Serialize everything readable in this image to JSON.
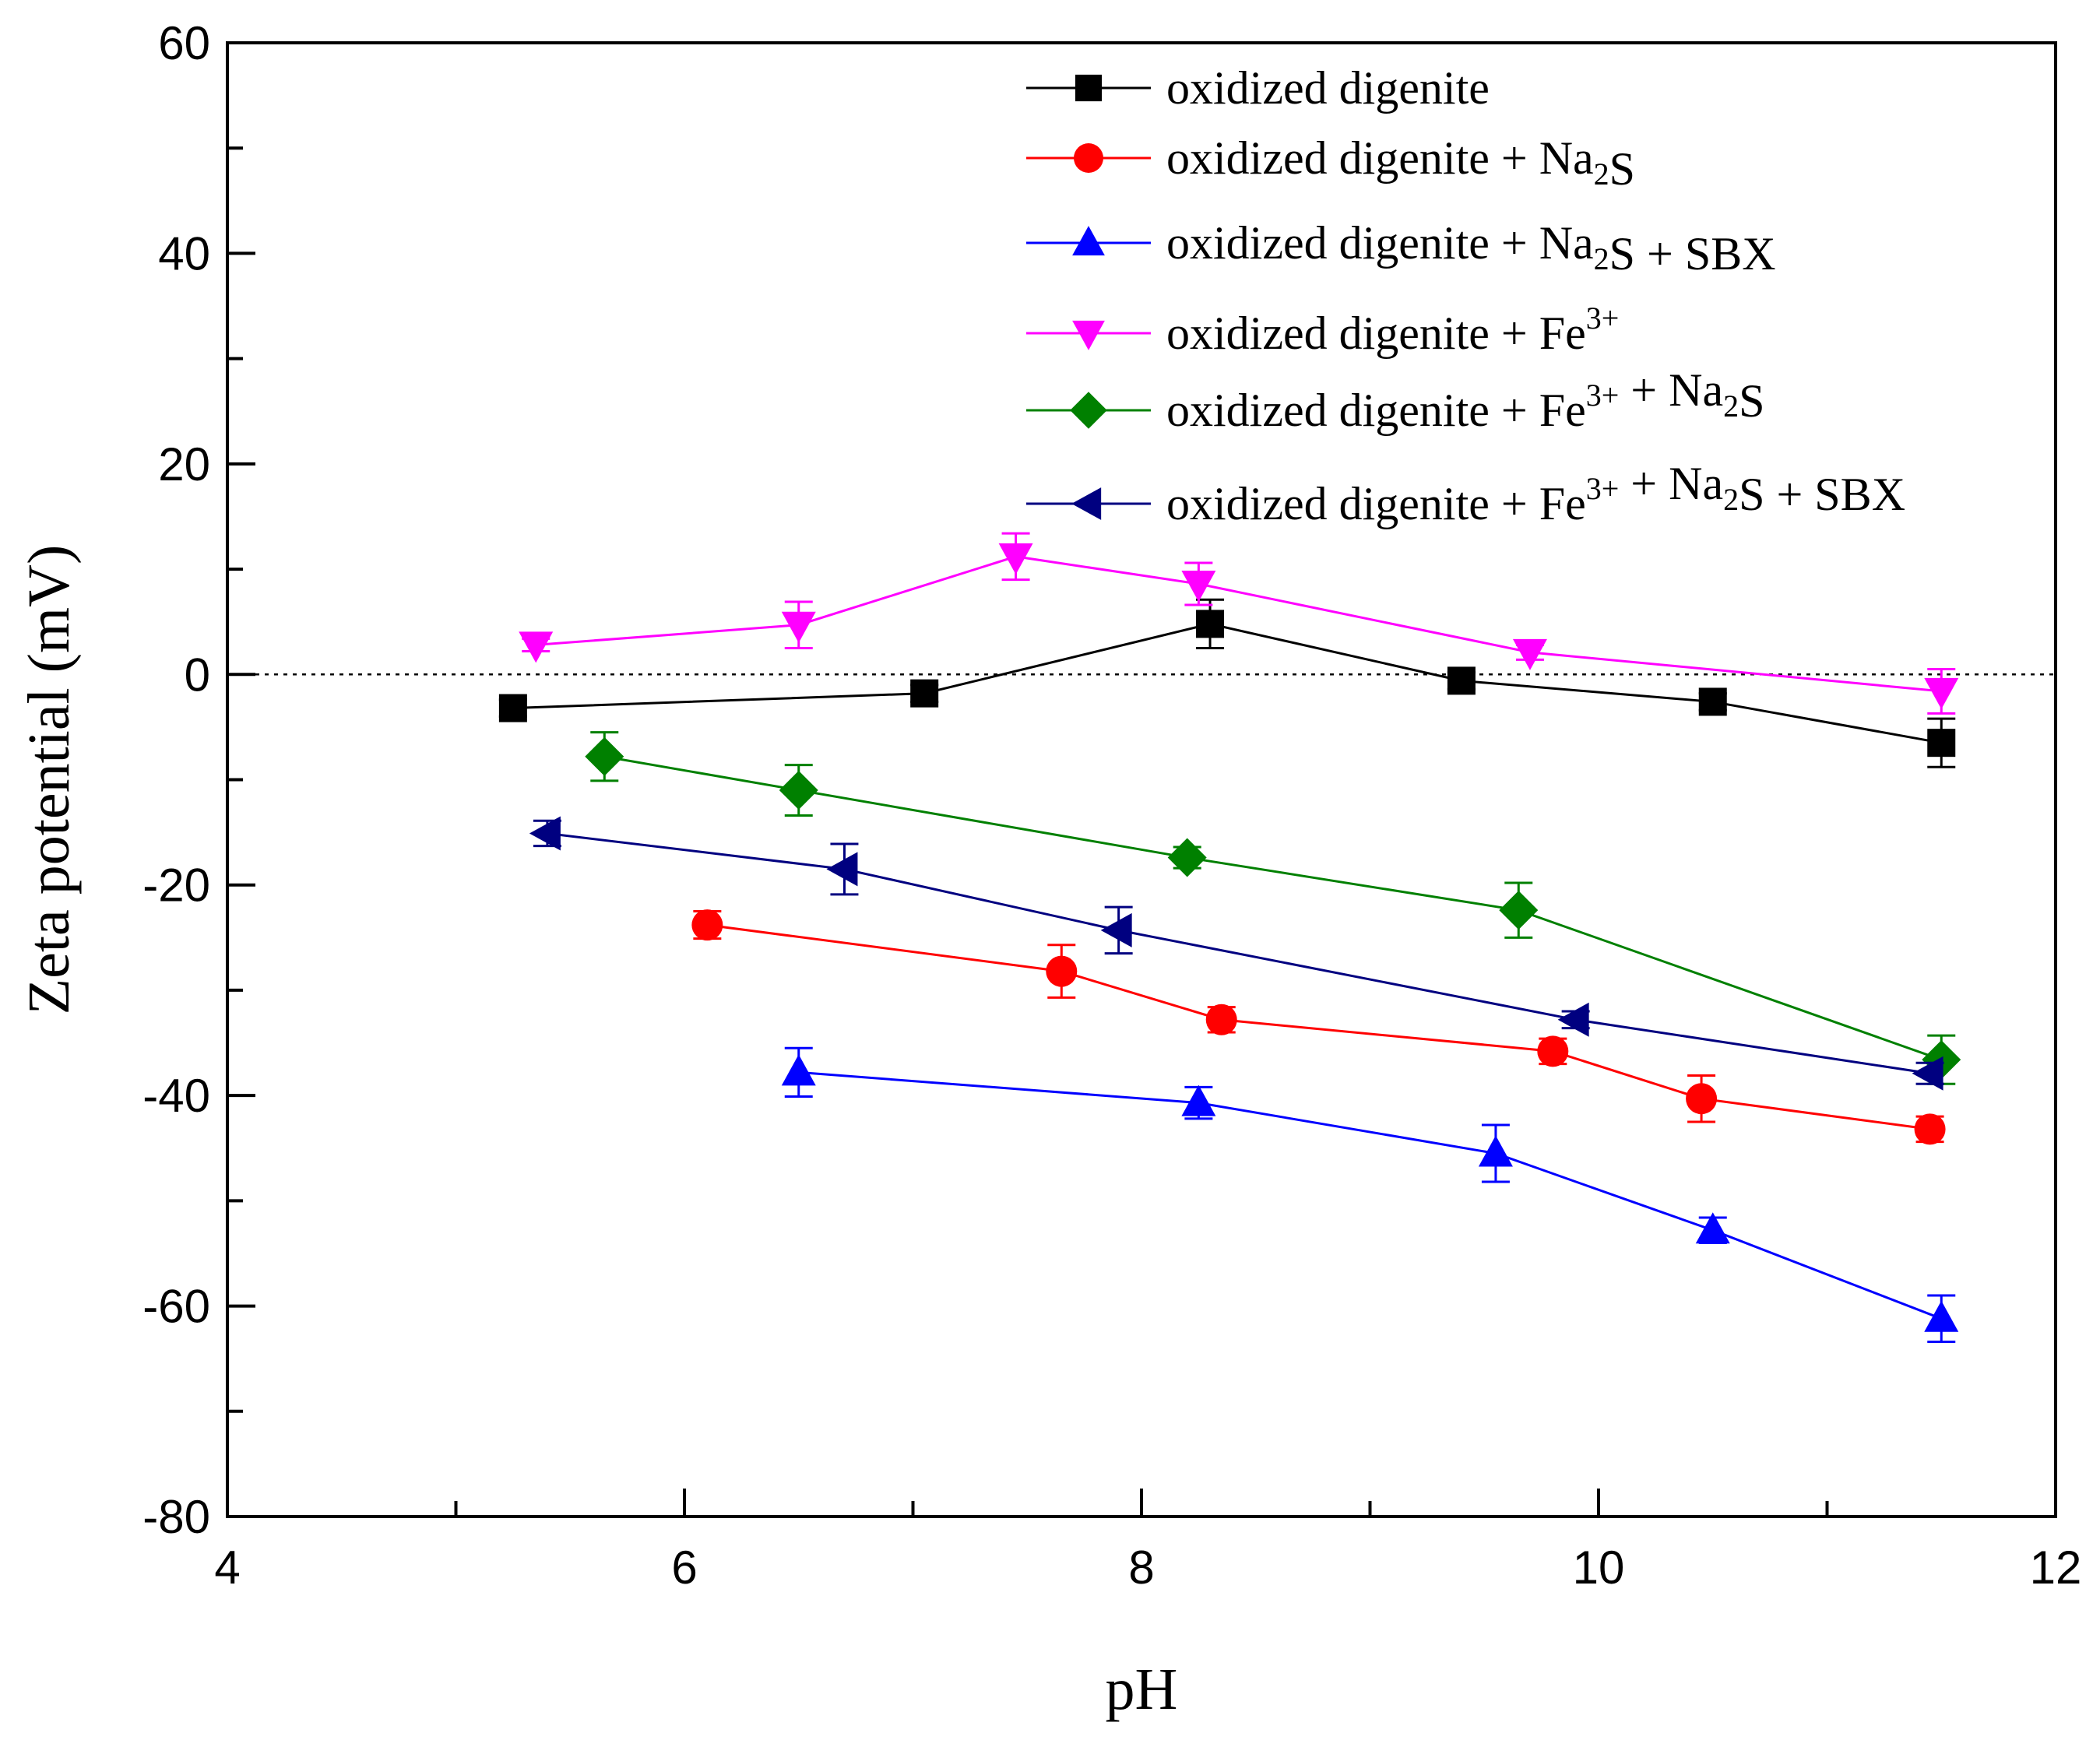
{
  "chart_data": {
    "type": "line",
    "xlabel": "pH",
    "ylabel": "Zeta potential (mV)",
    "xlim": [
      4,
      12
    ],
    "ylim": [
      -80,
      60
    ],
    "xticks": [
      4,
      6,
      8,
      10,
      12
    ],
    "yticks": [
      -80,
      -60,
      -40,
      -20,
      0,
      20,
      40,
      60
    ],
    "zero_line": true,
    "legend_position": "top-right",
    "series": [
      {
        "name": "oxidized digenite",
        "legend": [
          {
            "t": "oxidized digenite"
          }
        ],
        "color": "#000000",
        "marker": "square",
        "x": [
          5.25,
          7.05,
          8.3,
          9.4,
          10.5,
          11.5
        ],
        "y": [
          -3.2,
          -1.8,
          4.8,
          -0.6,
          -2.6,
          -6.5
        ],
        "err": [
          0.8,
          0.8,
          2.3,
          0.8,
          0.8,
          2.3
        ]
      },
      {
        "name": "oxidized digenite + Na2S",
        "legend": [
          {
            "t": "oxidized digenite + Na"
          },
          {
            "t": "2",
            "sub": true
          },
          {
            "t": "S"
          }
        ],
        "color": "#ff0000",
        "marker": "circle",
        "x": [
          6.1,
          7.65,
          8.35,
          9.8,
          10.45,
          11.45
        ],
        "y": [
          -23.8,
          -28.2,
          -32.8,
          -35.8,
          -40.3,
          -43.2
        ],
        "err": [
          1.3,
          2.5,
          1.2,
          1.2,
          2.2,
          1.2
        ]
      },
      {
        "name": "oxidized digenite + Na2S + SBX",
        "legend": [
          {
            "t": "oxidized digenite + Na"
          },
          {
            "t": "2",
            "sub": true
          },
          {
            "t": "S + SBX"
          }
        ],
        "color": "#0000ff",
        "marker": "triangle-up",
        "x": [
          6.5,
          8.25,
          9.55,
          10.5,
          11.5
        ],
        "y": [
          -37.8,
          -40.7,
          -45.5,
          -52.8,
          -61.2
        ],
        "err": [
          2.3,
          1.5,
          2.7,
          1.2,
          2.2
        ]
      },
      {
        "name": "oxidized digenite + Fe3+",
        "legend": [
          {
            "t": "oxidized digenite + Fe"
          },
          {
            "t": "3+",
            "sup": true
          }
        ],
        "color": "#ff00ff",
        "marker": "triangle-down",
        "x": [
          5.35,
          6.5,
          7.45,
          8.25,
          9.7,
          11.5
        ],
        "y": [
          2.8,
          4.7,
          11.2,
          8.6,
          2.1,
          -1.6
        ],
        "err": [
          0.6,
          2.2,
          2.2,
          2.0,
          0.7,
          2.1
        ]
      },
      {
        "name": "oxidized digenite + Fe3+ + Na2S",
        "legend": [
          {
            "t": "oxidized digenite + Fe"
          },
          {
            "t": "3+",
            "sup": true
          },
          {
            "t": " + Na"
          },
          {
            "t": "2",
            "sub": true
          },
          {
            "t": "S"
          }
        ],
        "color": "#008000",
        "marker": "diamond",
        "x": [
          5.65,
          6.5,
          8.2,
          9.65,
          11.5
        ],
        "y": [
          -7.8,
          -11.0,
          -17.4,
          -22.4,
          -36.6
        ],
        "err": [
          2.3,
          2.4,
          1.0,
          2.6,
          2.3
        ]
      },
      {
        "name": "oxidized digenite + Fe3+ + Na2S + SBX",
        "legend": [
          {
            "t": "oxidized digenite + Fe"
          },
          {
            "t": "3+",
            "sup": true
          },
          {
            "t": " + Na"
          },
          {
            "t": "2",
            "sub": true
          },
          {
            "t": "S + SBX"
          }
        ],
        "color": "#000080",
        "marker": "triangle-left",
        "x": [
          5.4,
          6.7,
          7.9,
          9.9,
          11.45
        ],
        "y": [
          -15.1,
          -18.5,
          -24.3,
          -32.8,
          -37.9
        ],
        "err": [
          1.2,
          2.4,
          2.2,
          0.8,
          1.0
        ]
      }
    ]
  }
}
